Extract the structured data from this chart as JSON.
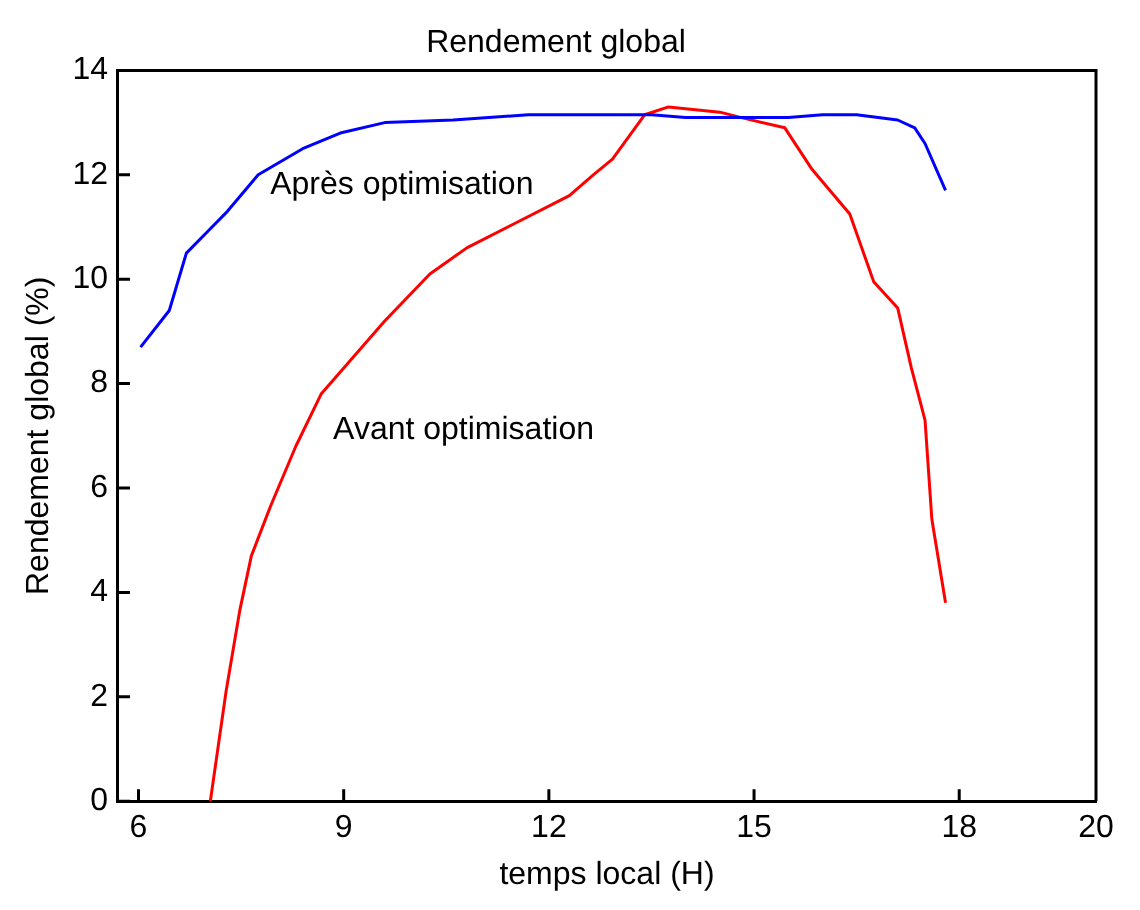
{
  "chart_data": {
    "type": "line",
    "title": "Rendement global",
    "xlabel": "temps local (H)",
    "ylabel": "Rendement global (%)",
    "xlim": [
      5.7,
      20
    ],
    "xticks": [
      6,
      9,
      12,
      15,
      18,
      20
    ],
    "ylim": [
      0,
      14
    ],
    "yticks": [
      0,
      2,
      4,
      6,
      8,
      10,
      12,
      14
    ],
    "grid": false,
    "legend": false,
    "marker": "none",
    "line_style": "solid",
    "series": [
      {
        "name": "Après optimisation",
        "color": "#0000ff",
        "x": [
          6.03,
          6.45,
          6.7,
          7.0,
          7.3,
          7.75,
          8.4,
          8.95,
          9.6,
          10.6,
          11.7,
          13.5,
          14.0,
          15.5,
          16.0,
          16.5,
          17.1,
          17.35,
          17.5,
          17.8
        ],
        "values": [
          8.7,
          9.4,
          10.5,
          10.9,
          11.3,
          12.0,
          12.5,
          12.8,
          13.0,
          13.05,
          13.15,
          13.15,
          13.1,
          13.1,
          13.15,
          13.15,
          13.05,
          12.9,
          12.6,
          11.7
        ]
      },
      {
        "name": "Avant optimisation",
        "color": "#ff0000",
        "x": [
          7.05,
          7.28,
          7.48,
          7.65,
          7.93,
          8.3,
          8.67,
          9.6,
          10.26,
          10.8,
          11.55,
          12.3,
          12.65,
          12.93,
          13.4,
          13.75,
          14.5,
          14.8,
          15.45,
          15.85,
          16.4,
          16.75,
          17.1,
          17.3,
          17.5,
          17.6,
          17.8
        ],
        "values": [
          0,
          2.1,
          3.65,
          4.7,
          5.65,
          6.8,
          7.8,
          9.2,
          10.1,
          10.6,
          11.1,
          11.6,
          12.0,
          12.3,
          13.15,
          13.3,
          13.2,
          13.1,
          12.9,
          12.1,
          11.25,
          9.95,
          9.45,
          8.3,
          7.3,
          5.4,
          3.8
        ]
      }
    ]
  }
}
